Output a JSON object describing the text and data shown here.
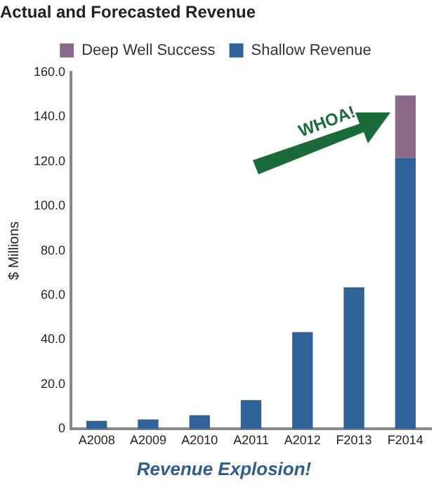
{
  "chart_data": {
    "type": "bar",
    "title": "Actual and Forecasted Revenue",
    "ylabel": "$ Millions",
    "categories": [
      "A2008",
      "A2009",
      "A2010",
      "A2011",
      "A2012",
      "F2013",
      "F2014"
    ],
    "series": [
      {
        "name": "Shallow Revenue",
        "color": "#2e6298",
        "values": [
          3.7,
          4.3,
          6.2,
          13,
          43.5,
          63.6,
          121.6
        ]
      },
      {
        "name": "Deep Well Success",
        "color": "#8c6b8a",
        "values": [
          null,
          null,
          null,
          null,
          null,
          null,
          28
        ]
      }
    ],
    "stacked": true,
    "ylim": [
      0,
      160
    ],
    "yticks": [
      0,
      {
        "value": 20,
        "label": "20.0"
      },
      {
        "value": 40,
        "label": "40.0"
      },
      {
        "value": 60,
        "label": "60.0"
      },
      {
        "value": 80,
        "label": "80.0"
      },
      {
        "value": 100,
        "label": "100.0"
      },
      {
        "value": 120,
        "label": "120.0"
      },
      {
        "value": 140,
        "label": "140.0"
      },
      {
        "value": 160,
        "label": "160.0"
      }
    ],
    "grid": false,
    "legend": "top",
    "annotations": [
      "WHOA!",
      "Revenue Explosion!"
    ]
  }
}
